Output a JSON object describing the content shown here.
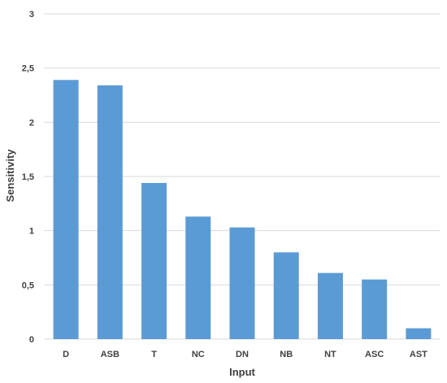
{
  "chart_data": {
    "type": "bar",
    "title": "",
    "xlabel": "Input",
    "ylabel": "Sensitivity",
    "categories": [
      "D",
      "ASB",
      "T",
      "NC",
      "DN",
      "NB",
      "NT",
      "ASC",
      "AST"
    ],
    "values": [
      2.39,
      2.34,
      1.44,
      1.13,
      1.03,
      0.8,
      0.61,
      0.55,
      0.1
    ],
    "ylim": [
      0,
      3
    ],
    "yticks": [
      0,
      0.5,
      1,
      1.5,
      2,
      2.5,
      3
    ],
    "ytick_labels": [
      "0",
      "0,5",
      "1",
      "1,5",
      "2",
      "2,5",
      "3"
    ],
    "grid": true,
    "legend": "none",
    "colors": {
      "bar": "#5b9bd5",
      "grid": "#d9d9d9",
      "text": "#404040"
    }
  }
}
